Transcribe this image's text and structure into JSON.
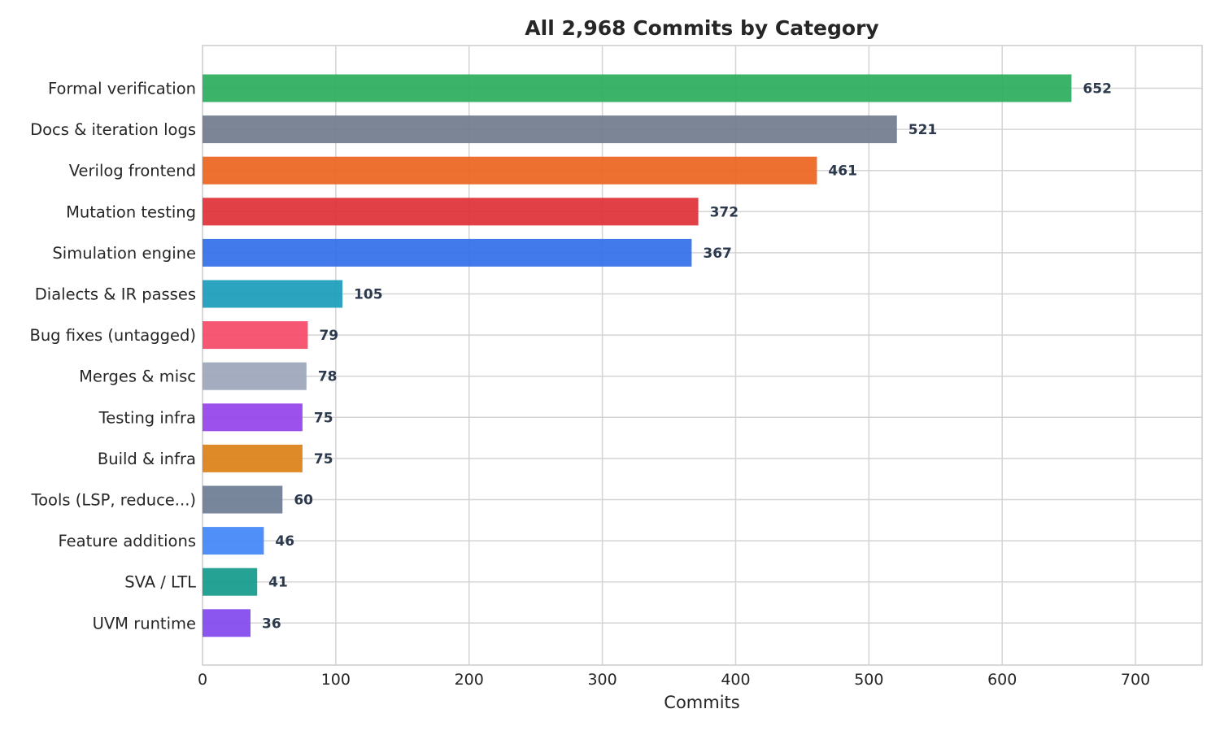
{
  "chart_data": {
    "type": "bar",
    "orientation": "horizontal",
    "title": "All 2,968 Commits by Category",
    "xlabel": "Commits",
    "ylabel": "",
    "xlim": [
      0,
      750
    ],
    "xticks": [
      0,
      100,
      200,
      300,
      400,
      500,
      600,
      700
    ],
    "grid": true,
    "categories": [
      "Formal verification",
      "Docs & iteration logs",
      "Verilog frontend",
      "Mutation testing",
      "Simulation engine",
      "Dialects & IR passes",
      "Bug fixes (untagged)",
      "Merges & misc",
      "Testing infra",
      "Build & infra",
      "Tools (LSP, reduce...)",
      "Feature additions",
      "SVA / LTL",
      "UVM runtime"
    ],
    "values": [
      652,
      521,
      461,
      372,
      367,
      105,
      79,
      78,
      75,
      75,
      60,
      46,
      41,
      36
    ],
    "colors": [
      "#2aad5c",
      "#717b8c",
      "#ec6420",
      "#de3036",
      "#326ee9",
      "#199dba",
      "#f54a68",
      "#9ca6ba",
      "#9542ea",
      "#dc8017",
      "#6d7c93",
      "#4185f6",
      "#149a8c",
      "#8147ef"
    ]
  }
}
